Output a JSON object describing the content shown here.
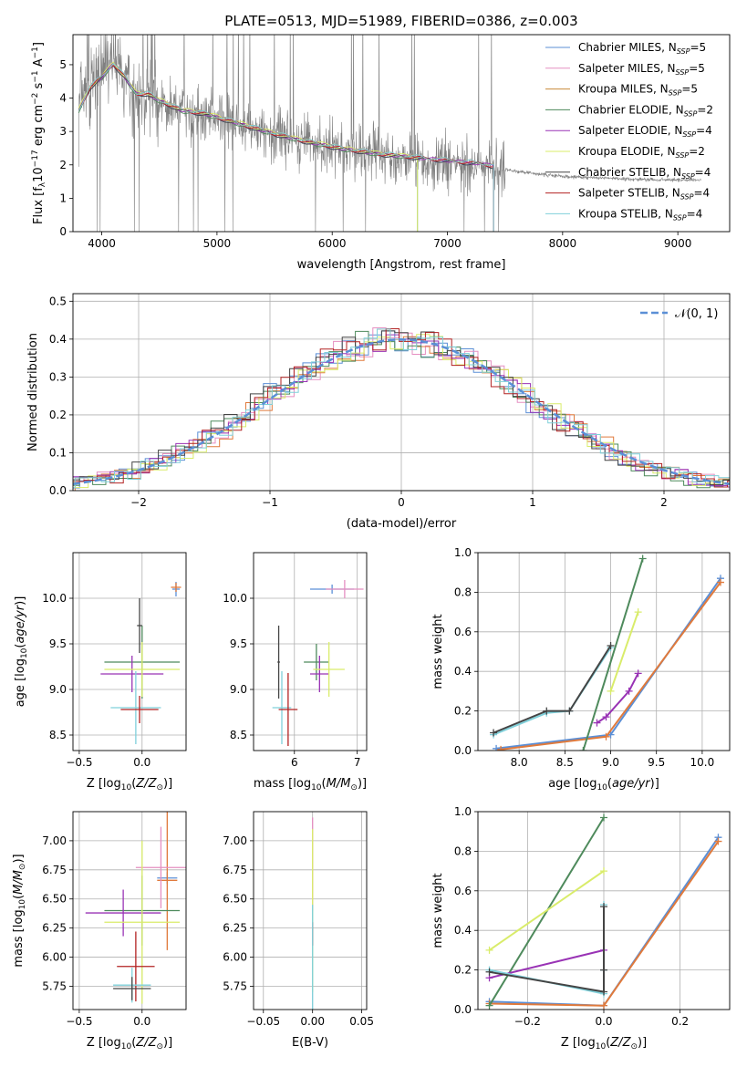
{
  "figure_title": "PLATE=0513, MJD=51989, FIBERID=0386, z=0.003",
  "colors": {
    "chabrier_miles": "#5b8fd6",
    "salpeter_miles": "#e58fc1",
    "kroupa_miles": "#c9893a",
    "chabrier_elodie": "#4e8a5c",
    "salpeter_elodie": "#9933b5",
    "kroupa_elodie": "#d9ec6a",
    "chabrier_stelib": "#444444",
    "salpeter_stelib": "#b22222",
    "kroupa_stelib": "#7fd0da",
    "data": "#808080",
    "normal": "#5b8fd6",
    "orange_line": "#e07a3c"
  },
  "chart_data": [
    {
      "id": "spectrum",
      "type": "line",
      "title": "PLATE=0513, MJD=51989, FIBERID=0386, z=0.003",
      "xlabel": "wavelength [Angstrom, rest frame]",
      "ylabel": "Flux [f",
      "xlim": [
        3750,
        9450
      ],
      "ylim": [
        0,
        5.9
      ],
      "xticks": [
        "4000",
        "5000",
        "6000",
        "7000",
        "8000",
        "9000"
      ],
      "yticks": [
        "0",
        "1",
        "2",
        "3",
        "4",
        "5"
      ],
      "legend_position": "top-right",
      "legend": [
        "Chabrier MILES, N_SSP=5",
        "Salpeter MILES, N_SSP=5",
        "Kroupa MILES, N_SSP=5",
        "Chabrier ELODIE, N_SSP=2",
        "Salpeter ELODIE, N_SSP=4",
        "Kroupa ELODIE, N_SSP=2",
        "Chabrier STELIB, N_SSP=4",
        "Salpeter STELIB, N_SSP=4",
        "Kroupa STELIB, N_SSP=4"
      ],
      "data_xrange": [
        3800,
        9200
      ],
      "model_xrange": [
        3800,
        7400
      ],
      "continuum": [
        [
          3800,
          3.6
        ],
        [
          3900,
          4.3
        ],
        [
          4000,
          4.6
        ],
        [
          4100,
          5.0
        ],
        [
          4200,
          4.6
        ],
        [
          4300,
          4.1
        ],
        [
          4400,
          4.1
        ],
        [
          4500,
          3.9
        ],
        [
          4700,
          3.6
        ],
        [
          4900,
          3.5
        ],
        [
          5100,
          3.3
        ],
        [
          5300,
          3.1
        ],
        [
          5500,
          2.9
        ],
        [
          5800,
          2.65
        ],
        [
          6100,
          2.45
        ],
        [
          6400,
          2.3
        ],
        [
          6700,
          2.2
        ],
        [
          7000,
          2.1
        ],
        [
          7300,
          2.0
        ],
        [
          7600,
          1.8
        ],
        [
          8000,
          1.65
        ],
        [
          8400,
          1.6
        ],
        [
          8800,
          1.55
        ],
        [
          9200,
          1.55
        ]
      ]
    },
    {
      "id": "residuals",
      "type": "line",
      "xlabel": "(data-model)/error",
      "ylabel": "Normed distribution",
      "xlim": [
        -2.5,
        2.5
      ],
      "ylim": [
        0,
        0.52
      ],
      "xticks": [
        "−2",
        "−1",
        "0",
        "1",
        "2"
      ],
      "yticks": [
        "0.0",
        "0.1",
        "0.2",
        "0.3",
        "0.4",
        "0.5"
      ],
      "grid": true,
      "legend_position": "top-right",
      "legend": [
        "𝒩(0, 1)"
      ],
      "normal_mean": 0,
      "normal_sigma": 1
    },
    {
      "id": "age_vs_Z",
      "type": "scatter",
      "xlabel": "Z [log10(Z/Z⊙)]",
      "ylabel": "age  [log10(age/yr)]",
      "xlim": [
        -0.55,
        0.35
      ],
      "ylim": [
        8.33,
        10.5
      ],
      "xticks": [
        "−0.5",
        "0.0"
      ],
      "yticks": [
        "8.5",
        "9.0",
        "9.5",
        "10.0"
      ],
      "grid": true,
      "points": [
        {
          "x": 0.27,
          "y": 10.1,
          "xerr": 0.03,
          "yerr": 0.08,
          "c": "chabrier_miles"
        },
        {
          "x": 0.27,
          "y": 10.12,
          "xerr": 0.04,
          "yerr": 0.05,
          "c": "orange_line"
        },
        {
          "x": 0.0,
          "y": 9.3,
          "xerr": 0.3,
          "yerr": 0.4,
          "c": "chabrier_elodie"
        },
        {
          "x": -0.08,
          "y": 9.17,
          "xerr": 0.25,
          "yerr": 0.2,
          "c": "salpeter_elodie"
        },
        {
          "x": 0.0,
          "y": 9.22,
          "xerr": 0.3,
          "yerr": 0.3,
          "c": "kroupa_elodie"
        },
        {
          "x": -0.05,
          "y": 8.8,
          "xerr": 0.2,
          "yerr": 0.4,
          "c": "kroupa_stelib"
        },
        {
          "x": -0.02,
          "y": 8.78,
          "xerr": 0.15,
          "yerr": 0.15,
          "c": "salpeter_stelib"
        },
        {
          "x": -0.02,
          "y": 9.7,
          "xerr": 0.02,
          "yerr": 0.3,
          "c": "chabrier_stelib"
        }
      ]
    },
    {
      "id": "age_vs_mass",
      "type": "scatter",
      "xlabel": "mass [log10(M/M⊙)]",
      "ylabel": "",
      "xlim": [
        5.35,
        7.15
      ],
      "ylim": [
        8.33,
        10.5
      ],
      "xticks": [
        "6",
        "7"
      ],
      "yticks": [
        "8.5",
        "9.0",
        "9.5",
        "10.0"
      ],
      "grid": true,
      "points": [
        {
          "x": 6.6,
          "y": 10.1,
          "xerr": 0.35,
          "yerr": 0.05,
          "c": "chabrier_miles"
        },
        {
          "x": 6.8,
          "y": 10.1,
          "xerr": 0.3,
          "yerr": 0.1,
          "c": "salpeter_miles"
        },
        {
          "x": 6.35,
          "y": 9.3,
          "xerr": 0.2,
          "yerr": 0.2,
          "c": "chabrier_elodie"
        },
        {
          "x": 6.4,
          "y": 9.17,
          "xerr": 0.15,
          "yerr": 0.2,
          "c": "salpeter_elodie"
        },
        {
          "x": 6.55,
          "y": 9.22,
          "xerr": 0.25,
          "yerr": 0.3,
          "c": "kroupa_elodie"
        },
        {
          "x": 5.8,
          "y": 8.8,
          "xerr": 0.15,
          "yerr": 0.4,
          "c": "kroupa_stelib"
        },
        {
          "x": 5.9,
          "y": 8.78,
          "xerr": 0.15,
          "yerr": 0.4,
          "c": "salpeter_stelib"
        },
        {
          "x": 5.75,
          "y": 9.3,
          "xerr": 0.02,
          "yerr": 0.4,
          "c": "chabrier_stelib"
        }
      ]
    },
    {
      "id": "weight_vs_age",
      "type": "line",
      "xlabel": "age  [log10(age/yr)]",
      "ylabel": "mass weight",
      "xlim": [
        7.55,
        10.3
      ],
      "ylim": [
        0,
        1.0
      ],
      "xticks": [
        "8.0",
        "8.5",
        "9.0",
        "9.5",
        "10.0"
      ],
      "yticks": [
        "0.0",
        "0.2",
        "0.4",
        "0.6",
        "0.8",
        "1.0"
      ],
      "grid": true,
      "series": [
        {
          "c": "chabrier_miles",
          "x": [
            7.75,
            9.0,
            10.2
          ],
          "y": [
            0.01,
            0.08,
            0.87
          ]
        },
        {
          "c": "orange_line",
          "x": [
            7.8,
            8.95,
            10.2
          ],
          "y": [
            0.005,
            0.07,
            0.85
          ]
        },
        {
          "c": "chabrier_elodie",
          "x": [
            8.7,
            9.35
          ],
          "y": [
            0.0,
            0.97
          ]
        },
        {
          "c": "salpeter_elodie",
          "x": [
            8.85,
            8.95,
            9.2,
            9.3
          ],
          "y": [
            0.14,
            0.17,
            0.3,
            0.39
          ]
        },
        {
          "c": "kroupa_elodie",
          "x": [
            9.0,
            9.3
          ],
          "y": [
            0.3,
            0.7
          ]
        },
        {
          "c": "kroupa_stelib",
          "x": [
            7.72,
            8.3,
            8.55,
            9.0
          ],
          "y": [
            0.08,
            0.19,
            0.2,
            0.52
          ]
        },
        {
          "c": "chabrier_stelib",
          "x": [
            7.72,
            8.3,
            8.55,
            9.0
          ],
          "y": [
            0.09,
            0.2,
            0.2,
            0.53
          ]
        }
      ]
    },
    {
      "id": "mass_vs_Z",
      "type": "scatter",
      "xlabel": "Z [log10(Z/Z⊙)]",
      "ylabel": "mass [log10(M/M⊙)]",
      "xlim": [
        -0.55,
        0.35
      ],
      "ylim": [
        5.55,
        7.25
      ],
      "xticks": [
        "−0.5",
        "0.0"
      ],
      "yticks": [
        "5.75",
        "6.00",
        "6.25",
        "6.50",
        "6.75",
        "7.00"
      ],
      "grid": true,
      "points": [
        {
          "x": 0.2,
          "y": 6.68,
          "xerr": 0.08,
          "yerr": 0.05,
          "c": "chabrier_miles"
        },
        {
          "x": 0.2,
          "y": 6.66,
          "xerr": 0.08,
          "yerr": 0.6,
          "c": "orange_line"
        },
        {
          "x": 0.15,
          "y": 6.77,
          "xerr": 0.2,
          "yerr": 0.35,
          "c": "salpeter_miles"
        },
        {
          "x": 0.0,
          "y": 6.4,
          "xerr": 0.3,
          "yerr": 0.3,
          "c": "chabrier_elodie"
        },
        {
          "x": -0.15,
          "y": 6.38,
          "xerr": 0.3,
          "yerr": 0.2,
          "c": "salpeter_elodie"
        },
        {
          "x": 0.0,
          "y": 6.3,
          "xerr": 0.3,
          "yerr": 0.7,
          "c": "kroupa_elodie"
        },
        {
          "x": -0.05,
          "y": 5.92,
          "xerr": 0.15,
          "yerr": 0.3,
          "c": "salpeter_stelib"
        },
        {
          "x": -0.08,
          "y": 5.76,
          "xerr": 0.15,
          "yerr": 0.15,
          "c": "kroupa_stelib"
        },
        {
          "x": -0.08,
          "y": 5.73,
          "xerr": 0.15,
          "yerr": 0.1,
          "c": "chabrier_stelib"
        }
      ]
    },
    {
      "id": "mass_vs_ebv",
      "type": "scatter",
      "xlabel": "E(B-V)",
      "ylabel": "",
      "xlim": [
        -0.06,
        0.055
      ],
      "ylim": [
        5.55,
        7.25
      ],
      "xticks": [
        "−0.05",
        "0.00",
        "0.05"
      ],
      "yticks": [
        "5.75",
        "6.00",
        "6.25",
        "6.50",
        "6.75",
        "7.00"
      ],
      "grid": true,
      "points": [
        {
          "x": 0.0,
          "y": 6.8,
          "xerr": 0.0,
          "yerr": 0.4,
          "c": "salpeter_miles"
        },
        {
          "x": 0.0,
          "y": 6.4,
          "xerr": 0.0,
          "yerr": 0.7,
          "c": "kroupa_elodie"
        },
        {
          "x": 0.0,
          "y": 6.2,
          "xerr": 0.0,
          "yerr": 0.1,
          "c": "salpeter_stelib"
        },
        {
          "x": 0.0,
          "y": 6.0,
          "xerr": 0.0,
          "yerr": 0.45,
          "c": "kroupa_stelib"
        }
      ]
    },
    {
      "id": "weight_vs_Z",
      "type": "line",
      "xlabel": "Z [log10(Z/Z⊙)]",
      "ylabel": "mass weight",
      "xlim": [
        -0.33,
        0.33
      ],
      "ylim": [
        0,
        1.0
      ],
      "xticks": [
        "−0.2",
        "0.0",
        "0.2"
      ],
      "yticks": [
        "0.0",
        "0.2",
        "0.4",
        "0.6",
        "0.8",
        "1.0"
      ],
      "grid": true,
      "series": [
        {
          "c": "chabrier_miles",
          "x": [
            -0.3,
            0.0,
            0.3
          ],
          "y": [
            0.04,
            0.02,
            0.87
          ]
        },
        {
          "c": "orange_line",
          "x": [
            -0.3,
            0.0,
            0.3
          ],
          "y": [
            0.03,
            0.02,
            0.85
          ]
        },
        {
          "c": "chabrier_elodie",
          "x": [
            -0.3,
            0.0
          ],
          "y": [
            0.02,
            0.97
          ]
        },
        {
          "c": "salpeter_elodie",
          "x": [
            -0.3,
            0.0
          ],
          "y": [
            0.16,
            0.3
          ]
        },
        {
          "c": "kroupa_elodie",
          "x": [
            -0.3,
            0.0
          ],
          "y": [
            0.3,
            0.7
          ]
        },
        {
          "c": "kroupa_stelib",
          "x": [
            -0.3,
            0.0,
            0.0,
            0.0
          ],
          "y": [
            0.2,
            0.08,
            0.2,
            0.53
          ]
        },
        {
          "c": "chabrier_stelib",
          "x": [
            -0.3,
            0.0,
            0.0,
            0.0
          ],
          "y": [
            0.19,
            0.09,
            0.2,
            0.52
          ]
        }
      ]
    }
  ]
}
